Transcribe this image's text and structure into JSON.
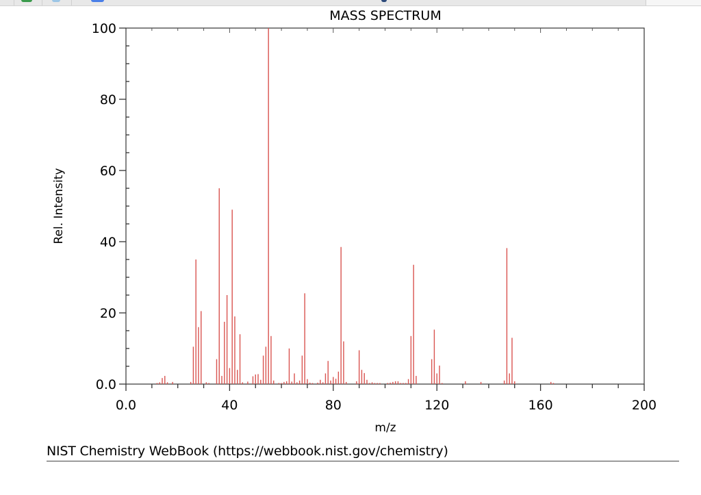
{
  "browser_strip": {
    "icons": [
      "spreadsheet-icon",
      "globe-icon",
      "blue-app-icon",
      "dropdown-icon"
    ]
  },
  "chart_data": {
    "type": "bar",
    "title": "MASS SPECTRUM",
    "xlabel": "m/z",
    "ylabel": "Rel. Intensity",
    "xlim": [
      0,
      200
    ],
    "ylim": [
      0,
      100
    ],
    "x_ticks": [
      0,
      40,
      80,
      120,
      160,
      200
    ],
    "x_tick_labels": [
      "0.0",
      "40",
      "80",
      "120",
      "160",
      "200"
    ],
    "x_minor_step": 10,
    "y_ticks": [
      0,
      20,
      40,
      60,
      80,
      100
    ],
    "y_tick_labels": [
      "0.0",
      "20",
      "40",
      "60",
      "80",
      "100"
    ],
    "y_minor_step": 5,
    "grid": false,
    "legend": null,
    "bar_color": "#d9534f",
    "peaks": [
      {
        "mz": 12,
        "intensity": 0.3
      },
      {
        "mz": 13,
        "intensity": 0.5
      },
      {
        "mz": 14,
        "intensity": 1.7
      },
      {
        "mz": 15,
        "intensity": 2.3
      },
      {
        "mz": 16,
        "intensity": 0.5
      },
      {
        "mz": 18,
        "intensity": 0.6
      },
      {
        "mz": 25,
        "intensity": 0.6
      },
      {
        "mz": 26,
        "intensity": 10.5
      },
      {
        "mz": 27,
        "intensity": 35.0
      },
      {
        "mz": 28,
        "intensity": 16.0
      },
      {
        "mz": 29,
        "intensity": 20.5
      },
      {
        "mz": 31,
        "intensity": 0.5
      },
      {
        "mz": 32,
        "intensity": 0.3
      },
      {
        "mz": 35,
        "intensity": 7.0
      },
      {
        "mz": 36,
        "intensity": 55.0
      },
      {
        "mz": 37,
        "intensity": 2.3
      },
      {
        "mz": 38,
        "intensity": 17.5
      },
      {
        "mz": 39,
        "intensity": 25.0
      },
      {
        "mz": 40,
        "intensity": 4.5
      },
      {
        "mz": 41,
        "intensity": 49.0
      },
      {
        "mz": 42,
        "intensity": 19.0
      },
      {
        "mz": 43,
        "intensity": 4.0
      },
      {
        "mz": 44,
        "intensity": 14.0
      },
      {
        "mz": 45,
        "intensity": 0.5
      },
      {
        "mz": 47,
        "intensity": 0.7
      },
      {
        "mz": 49,
        "intensity": 2.2
      },
      {
        "mz": 50,
        "intensity": 2.7
      },
      {
        "mz": 51,
        "intensity": 2.8
      },
      {
        "mz": 52,
        "intensity": 1.2
      },
      {
        "mz": 53,
        "intensity": 8.0
      },
      {
        "mz": 54,
        "intensity": 10.5
      },
      {
        "mz": 55,
        "intensity": 100.0
      },
      {
        "mz": 56,
        "intensity": 13.5
      },
      {
        "mz": 57,
        "intensity": 1.0
      },
      {
        "mz": 59,
        "intensity": 0.3
      },
      {
        "mz": 60,
        "intensity": 0.3
      },
      {
        "mz": 61,
        "intensity": 0.6
      },
      {
        "mz": 62,
        "intensity": 0.8
      },
      {
        "mz": 63,
        "intensity": 10.0
      },
      {
        "mz": 64,
        "intensity": 0.7
      },
      {
        "mz": 65,
        "intensity": 3.0
      },
      {
        "mz": 66,
        "intensity": 0.5
      },
      {
        "mz": 67,
        "intensity": 1.0
      },
      {
        "mz": 68,
        "intensity": 8.0
      },
      {
        "mz": 69,
        "intensity": 25.5
      },
      {
        "mz": 70,
        "intensity": 1.4
      },
      {
        "mz": 71,
        "intensity": 0.4
      },
      {
        "mz": 72,
        "intensity": 0.3
      },
      {
        "mz": 74,
        "intensity": 0.4
      },
      {
        "mz": 75,
        "intensity": 1.2
      },
      {
        "mz": 76,
        "intensity": 0.5
      },
      {
        "mz": 77,
        "intensity": 3.0
      },
      {
        "mz": 78,
        "intensity": 6.5
      },
      {
        "mz": 79,
        "intensity": 1.0
      },
      {
        "mz": 80,
        "intensity": 2.0
      },
      {
        "mz": 81,
        "intensity": 1.5
      },
      {
        "mz": 82,
        "intensity": 3.5
      },
      {
        "mz": 83,
        "intensity": 38.5
      },
      {
        "mz": 84,
        "intensity": 12.0
      },
      {
        "mz": 85,
        "intensity": 0.6
      },
      {
        "mz": 89,
        "intensity": 0.8
      },
      {
        "mz": 90,
        "intensity": 9.5
      },
      {
        "mz": 91,
        "intensity": 4.0
      },
      {
        "mz": 92,
        "intensity": 3.1
      },
      {
        "mz": 93,
        "intensity": 1.2
      },
      {
        "mz": 94,
        "intensity": 0.3
      },
      {
        "mz": 95,
        "intensity": 0.5
      },
      {
        "mz": 96,
        "intensity": 0.3
      },
      {
        "mz": 97,
        "intensity": 0.3
      },
      {
        "mz": 98,
        "intensity": 0.3
      },
      {
        "mz": 101,
        "intensity": 0.3
      },
      {
        "mz": 102,
        "intensity": 0.4
      },
      {
        "mz": 103,
        "intensity": 0.6
      },
      {
        "mz": 104,
        "intensity": 0.8
      },
      {
        "mz": 105,
        "intensity": 0.8
      },
      {
        "mz": 106,
        "intensity": 0.3
      },
      {
        "mz": 107,
        "intensity": 0.3
      },
      {
        "mz": 108,
        "intensity": 0.3
      },
      {
        "mz": 109,
        "intensity": 1.4
      },
      {
        "mz": 110,
        "intensity": 13.5
      },
      {
        "mz": 111,
        "intensity": 33.5
      },
      {
        "mz": 112,
        "intensity": 2.3
      },
      {
        "mz": 118,
        "intensity": 7.0
      },
      {
        "mz": 119,
        "intensity": 15.3
      },
      {
        "mz": 120,
        "intensity": 3.0
      },
      {
        "mz": 121,
        "intensity": 5.2
      },
      {
        "mz": 122,
        "intensity": 0.3
      },
      {
        "mz": 131,
        "intensity": 0.8
      },
      {
        "mz": 137,
        "intensity": 0.6
      },
      {
        "mz": 146,
        "intensity": 1.0
      },
      {
        "mz": 147,
        "intensity": 38.2
      },
      {
        "mz": 148,
        "intensity": 3.0
      },
      {
        "mz": 149,
        "intensity": 13.0
      },
      {
        "mz": 150,
        "intensity": 0.8
      },
      {
        "mz": 164,
        "intensity": 0.6
      },
      {
        "mz": 165,
        "intensity": 0.3
      }
    ]
  },
  "footer": {
    "credit": "NIST Chemistry WebBook (https://webbook.nist.gov/chemistry)"
  }
}
